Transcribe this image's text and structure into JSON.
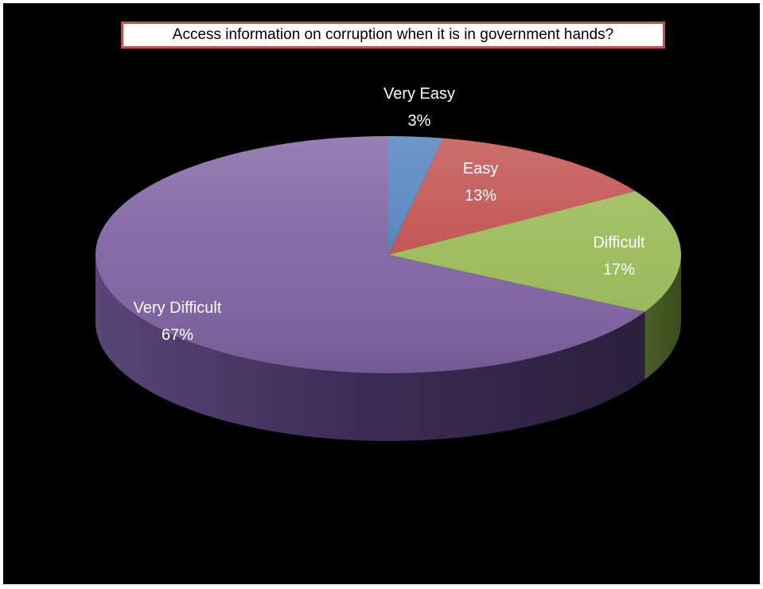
{
  "chart_data": {
    "type": "pie",
    "title": "Access information on corruption when it is in government hands?",
    "categories": [
      "Very Easy",
      "Easy",
      "Difficult",
      "Very Difficult"
    ],
    "values": [
      3,
      13,
      17,
      67
    ],
    "labels": [
      "3%",
      "13%",
      "17%",
      "67%"
    ],
    "colors": [
      "#4f81bd",
      "#c0504d",
      "#9bbb59",
      "#8064a2"
    ],
    "legend": "none",
    "style": "3d"
  }
}
